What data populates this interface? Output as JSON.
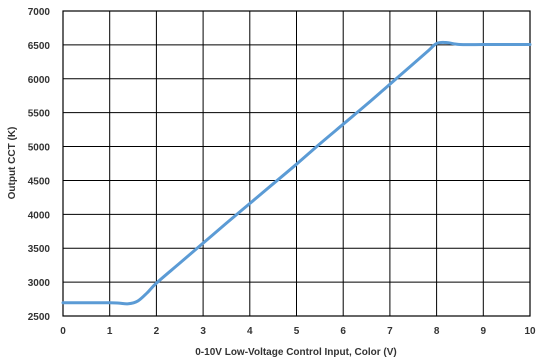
{
  "chart_data": {
    "type": "line",
    "title": "",
    "xlabel": "0-10V Low-Voltage Control  Input, Color (V)",
    "ylabel": "Output CCT (K)",
    "xlim": [
      0,
      10
    ],
    "ylim": [
      2500,
      7000
    ],
    "xticks": [
      "0",
      "1",
      "2",
      "3",
      "4",
      "5",
      "6",
      "7",
      "8",
      "9",
      "10"
    ],
    "yticks": [
      "2500",
      "3000",
      "3500",
      "4000",
      "4500",
      "5000",
      "5500",
      "6000",
      "6500",
      "7000"
    ],
    "grid": true,
    "legend": "none",
    "line_color": "#5b9bd5",
    "series": [
      {
        "x": [
          0,
          0.5,
          1.0,
          1.2,
          1.4,
          1.6,
          1.8,
          2.0,
          2.5,
          3.0,
          3.5,
          4.0,
          4.5,
          5.0,
          5.5,
          6.0,
          6.5,
          7.0,
          7.5,
          7.8,
          8.0,
          8.2,
          8.5,
          9.0,
          9.5,
          10.0
        ],
        "y": [
          2695,
          2695,
          2695,
          2690,
          2680,
          2720,
          2840,
          2985,
          3280,
          3575,
          3870,
          4160,
          4450,
          4740,
          5040,
          5330,
          5620,
          5920,
          6220,
          6400,
          6520,
          6535,
          6505,
          6505,
          6505,
          6505
        ]
      }
    ]
  }
}
